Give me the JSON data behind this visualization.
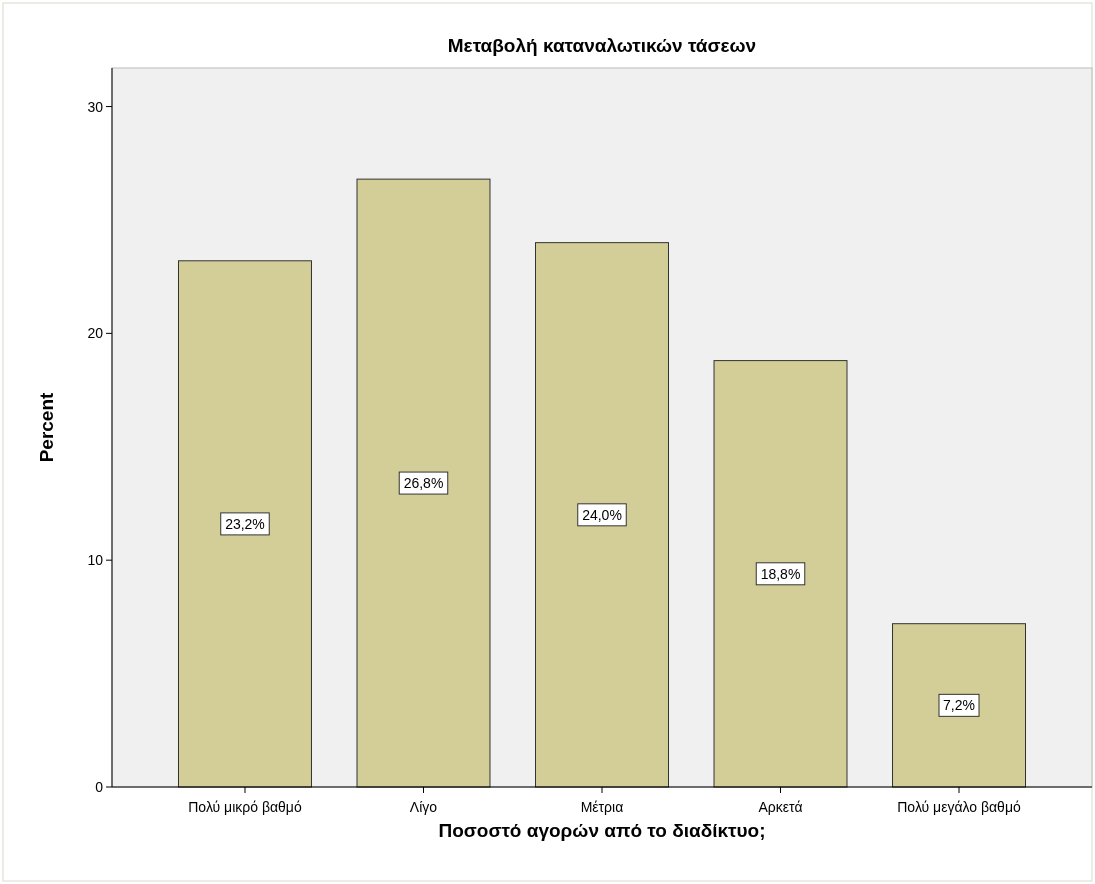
{
  "chart_data": {
    "type": "bar",
    "title": "Μεταβολή καταναλωτικών τάσεων",
    "xlabel": "Ποσοστό αγορών από το διαδίκτυο;",
    "ylabel": "Percent",
    "categories": [
      "Πολύ μικρό βαθμό",
      "Λίγο",
      "Μέτρια",
      "Αρκετά",
      "Πολύ μεγάλο βαθμό"
    ],
    "values": [
      23.2,
      26.8,
      24.0,
      18.8,
      7.2
    ],
    "value_labels": [
      "23,2%",
      "26,8%",
      "24,0%",
      "18,8%",
      "7,2%"
    ],
    "color": "#d3ce97",
    "ylim": [
      0,
      31.7
    ],
    "yticks": [
      0,
      10,
      20,
      30
    ],
    "grid": false
  }
}
